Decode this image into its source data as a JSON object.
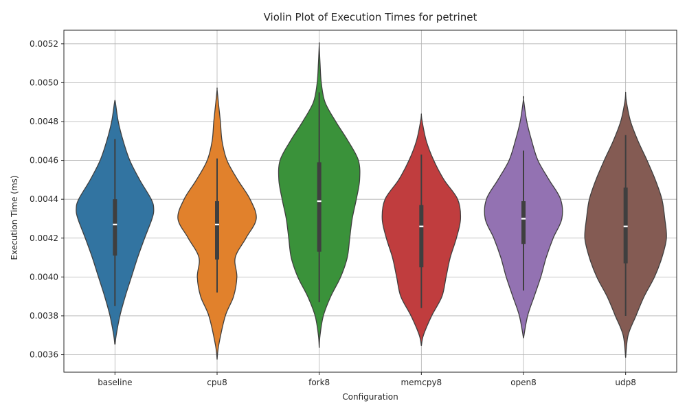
{
  "chart_data": {
    "type": "violin",
    "title": "Violin Plot of Execution Times for petrinet",
    "xlabel": "Configuration",
    "ylabel": "Execution Time (ms)",
    "ylim": [
      0.00351,
      0.00527
    ],
    "yticks": [
      0.0036,
      0.0038,
      0.004,
      0.0042,
      0.0044,
      0.0046,
      0.0048,
      0.005,
      0.0052
    ],
    "ytick_labels": [
      "0.0036",
      "0.0038",
      "0.0040",
      "0.0042",
      "0.0044",
      "0.0046",
      "0.0048",
      "0.0050",
      "0.0052"
    ],
    "grid": true,
    "categories": [
      "baseline",
      "cpu8",
      "fork8",
      "memcpy8",
      "open8",
      "udp8"
    ],
    "series": [
      {
        "category": "baseline",
        "color": "#3274a1",
        "min_extent": 0.003655,
        "max_extent": 0.004905,
        "whisker": [
          0.00385,
          0.00471
        ],
        "q1": 0.00411,
        "median": 0.00427,
        "q3": 0.0044,
        "density": [
          [
            0.003655,
            0.005
          ],
          [
            0.0037,
            0.03
          ],
          [
            0.0038,
            0.12
          ],
          [
            0.0039,
            0.25
          ],
          [
            0.004,
            0.4
          ],
          [
            0.0041,
            0.55
          ],
          [
            0.0042,
            0.72
          ],
          [
            0.0043,
            0.9
          ],
          [
            0.00435,
            0.94
          ],
          [
            0.0044,
            0.88
          ],
          [
            0.0045,
            0.6
          ],
          [
            0.0046,
            0.36
          ],
          [
            0.0047,
            0.2
          ],
          [
            0.0048,
            0.08
          ],
          [
            0.0049,
            0.01
          ],
          [
            0.004905,
            0.0
          ]
        ]
      },
      {
        "category": "cpu8",
        "color": "#e1812c",
        "min_extent": 0.003575,
        "max_extent": 0.004965,
        "whisker": [
          0.00392,
          0.00461
        ],
        "q1": 0.00409,
        "median": 0.00427,
        "q3": 0.00439,
        "density": [
          [
            0.003575,
            0.0
          ],
          [
            0.00365,
            0.04
          ],
          [
            0.0038,
            0.2
          ],
          [
            0.0039,
            0.4
          ],
          [
            0.004,
            0.48
          ],
          [
            0.0041,
            0.44
          ],
          [
            0.0042,
            0.7
          ],
          [
            0.0043,
            0.95
          ],
          [
            0.0044,
            0.8
          ],
          [
            0.0045,
            0.5
          ],
          [
            0.0046,
            0.24
          ],
          [
            0.0047,
            0.12
          ],
          [
            0.0048,
            0.08
          ],
          [
            0.0049,
            0.03
          ],
          [
            0.004965,
            0.0
          ]
        ]
      },
      {
        "category": "fork8",
        "color": "#3a923a",
        "min_extent": 0.003635,
        "max_extent": 0.005195,
        "whisker": [
          0.00387,
          0.00495
        ],
        "q1": 0.00413,
        "median": 0.00439,
        "q3": 0.00459,
        "density": [
          [
            0.003635,
            0.0
          ],
          [
            0.0037,
            0.02
          ],
          [
            0.0038,
            0.1
          ],
          [
            0.0039,
            0.28
          ],
          [
            0.004,
            0.52
          ],
          [
            0.0041,
            0.68
          ],
          [
            0.0042,
            0.74
          ],
          [
            0.0043,
            0.8
          ],
          [
            0.0044,
            0.9
          ],
          [
            0.0045,
            0.98
          ],
          [
            0.0046,
            0.95
          ],
          [
            0.0047,
            0.7
          ],
          [
            0.0048,
            0.4
          ],
          [
            0.0049,
            0.14
          ],
          [
            0.005,
            0.05
          ],
          [
            0.0051,
            0.02
          ],
          [
            0.005195,
            0.0
          ]
        ]
      },
      {
        "category": "memcpy8",
        "color": "#c03d3e",
        "min_extent": 0.003645,
        "max_extent": 0.004835,
        "whisker": [
          0.00384,
          0.00463
        ],
        "q1": 0.00405,
        "median": 0.00426,
        "q3": 0.00437,
        "density": [
          [
            0.003645,
            0.0
          ],
          [
            0.0037,
            0.05
          ],
          [
            0.0038,
            0.25
          ],
          [
            0.0039,
            0.5
          ],
          [
            0.004,
            0.6
          ],
          [
            0.0041,
            0.7
          ],
          [
            0.0042,
            0.85
          ],
          [
            0.0043,
            0.95
          ],
          [
            0.0044,
            0.88
          ],
          [
            0.0045,
            0.55
          ],
          [
            0.0046,
            0.3
          ],
          [
            0.0047,
            0.12
          ],
          [
            0.0048,
            0.02
          ],
          [
            0.004835,
            0.0
          ]
        ]
      },
      {
        "category": "open8",
        "color": "#9372b2",
        "min_extent": 0.003685,
        "max_extent": 0.004915,
        "whisker": [
          0.00393,
          0.00465
        ],
        "q1": 0.00417,
        "median": 0.0043,
        "q3": 0.00439,
        "density": [
          [
            0.003685,
            0.0
          ],
          [
            0.0038,
            0.1
          ],
          [
            0.0039,
            0.26
          ],
          [
            0.004,
            0.42
          ],
          [
            0.0041,
            0.55
          ],
          [
            0.0042,
            0.72
          ],
          [
            0.0043,
            0.93
          ],
          [
            0.0044,
            0.9
          ],
          [
            0.0045,
            0.62
          ],
          [
            0.0046,
            0.35
          ],
          [
            0.0047,
            0.2
          ],
          [
            0.0048,
            0.08
          ],
          [
            0.004915,
            0.0
          ]
        ]
      },
      {
        "category": "udp8",
        "color": "#845b53",
        "min_extent": 0.003585,
        "max_extent": 0.004945,
        "whisker": [
          0.0038,
          0.00473
        ],
        "q1": 0.00407,
        "median": 0.00426,
        "q3": 0.00446,
        "density": [
          [
            0.003585,
            0.0
          ],
          [
            0.0037,
            0.06
          ],
          [
            0.0038,
            0.25
          ],
          [
            0.0039,
            0.45
          ],
          [
            0.004,
            0.7
          ],
          [
            0.0041,
            0.88
          ],
          [
            0.0042,
            0.99
          ],
          [
            0.0043,
            0.95
          ],
          [
            0.0044,
            0.88
          ],
          [
            0.0045,
            0.72
          ],
          [
            0.0046,
            0.52
          ],
          [
            0.0047,
            0.3
          ],
          [
            0.0048,
            0.12
          ],
          [
            0.0049,
            0.02
          ],
          [
            0.004945,
            0.0
          ]
        ]
      }
    ]
  }
}
